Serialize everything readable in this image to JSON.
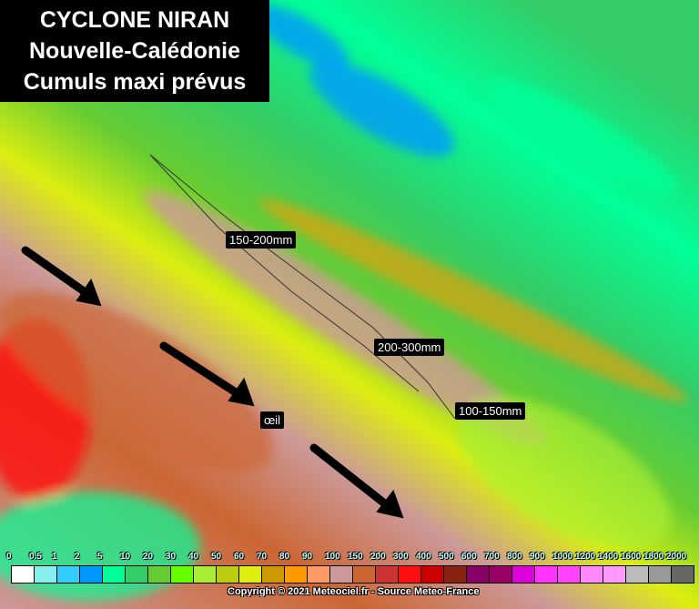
{
  "title": {
    "line1": "CYCLONE NIRAN",
    "line2": "Nouvelle-Calédonie",
    "line3": "Cumuls maxi prévus"
  },
  "annotations": {
    "north": "150-200mm",
    "center": "200-300mm",
    "south": "100-150mm",
    "eye": "œil"
  },
  "legend": {
    "labels": [
      "0",
      "0.5",
      "1",
      "2",
      "5",
      "10",
      "20",
      "30",
      "40",
      "50",
      "60",
      "70",
      "80",
      "90",
      "100",
      "150",
      "200",
      "300",
      "400",
      "500",
      "600",
      "700",
      "800",
      "900",
      "1000",
      "1200",
      "1400",
      "1600",
      "1800",
      "2000"
    ],
    "colors": [
      "#ffffff",
      "#88eeee",
      "#33ccff",
      "#0099ff",
      "#00ff99",
      "#33cc66",
      "#66cc33",
      "#66ff00",
      "#aaee33",
      "#bbcc11",
      "#ddee11",
      "#cc9900",
      "#ff9900",
      "#ff9966",
      "#cc9999",
      "#cc6633",
      "#cc3333",
      "#ff0f0f",
      "#cc0000",
      "#882211",
      "#880066",
      "#990066",
      "#dd00dd",
      "#ff33ff",
      "#ff44ff",
      "#ff88ff",
      "#ff99ff",
      "#bbbbbb",
      "#999999",
      "#666666"
    ]
  },
  "copyright": "Copyright © 2021 Meteociel.fr - Source Meteo-France"
}
